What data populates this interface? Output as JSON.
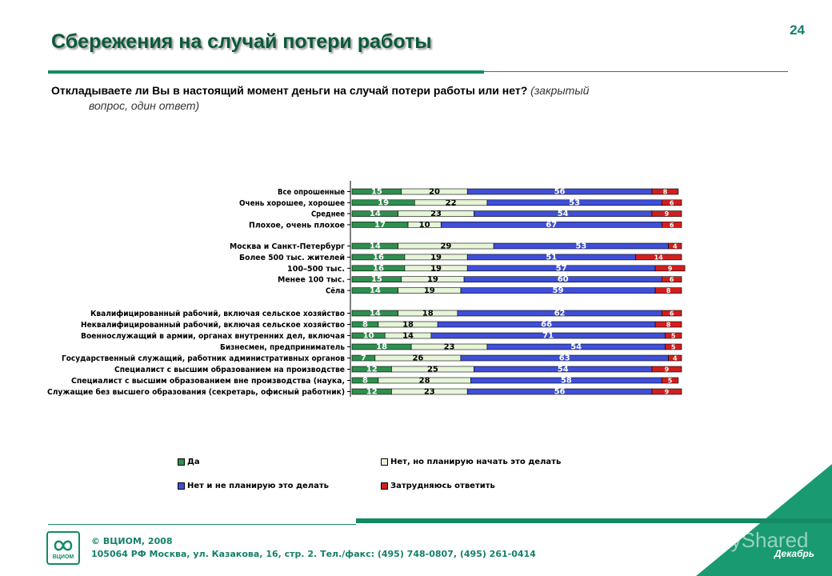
{
  "page_number": "24",
  "title": "Сбережения на случай потери работы",
  "question": {
    "main": "Откладываете ли Вы в настоящий момент деньги на случай потери работы или нет?",
    "note1": "(закрытый",
    "note2": "вопрос, один ответ)"
  },
  "colors": {
    "accent": "#148a64",
    "yes": "#2f8f4e",
    "plan": "#e6f5d8",
    "no": "#3f4fd8",
    "unsure": "#d21e1e"
  },
  "chart_data": {
    "type": "bar",
    "orientation": "horizontal",
    "stacked": true,
    "xlim": [
      0,
      100
    ],
    "grid": false,
    "legend_position": "bottom",
    "categories": [
      "Все опрошенные",
      "Очень хорошее, хорошее",
      "Среднее",
      "Плохое, очень плохое",
      "Москва и Санкт-Петербург",
      "Более 500 тыс. жителей",
      "100–500 тыс.",
      "Менее 100 тыс.",
      "Сёла",
      "Квалифицированный рабочий, включая сельское хозяйство",
      "Неквалифицированный рабочий, включая сельское хозяйство",
      "Военнослужащий в армии, органах внутренних дел, включая",
      "Бизнесмен, предприниматель",
      "Государственный служащий, работник административных органов",
      "Специалист с высшим образованием на производстве",
      "Специалист с высшим образованием вне производства (наука,",
      "Служащие без высшего образования (секретарь, офисный работник)"
    ],
    "series": [
      {
        "name": "Да",
        "values": [
          15,
          19,
          14,
          17,
          14,
          16,
          16,
          15,
          14,
          14,
          8,
          10,
          18,
          7,
          12,
          8,
          12
        ]
      },
      {
        "name": "Нет, но планирую начать это делать",
        "values": [
          20,
          22,
          23,
          10,
          29,
          19,
          19,
          19,
          19,
          18,
          18,
          14,
          23,
          26,
          25,
          28,
          23
        ]
      },
      {
        "name": "Нет и не планирую это делать",
        "values": [
          56,
          53,
          54,
          67,
          53,
          51,
          57,
          60,
          59,
          62,
          66,
          71,
          54,
          63,
          54,
          58,
          56
        ]
      },
      {
        "name": "Затрудняюсь ответить",
        "values": [
          8,
          6,
          9,
          6,
          4,
          14,
          9,
          6,
          8,
          6,
          8,
          5,
          5,
          4,
          9,
          5,
          9
        ]
      }
    ]
  },
  "footer": {
    "logo_text": "ВЦИОМ",
    "copyright": "© ВЦИОМ, 2008",
    "address": "105064 РФ Москва, ул. Казакова, 16, стр. 2. Тел./факс: (495) 748-0807, (495) 261-0414",
    "month": "Декабрь",
    "watermark": "MyShared"
  }
}
